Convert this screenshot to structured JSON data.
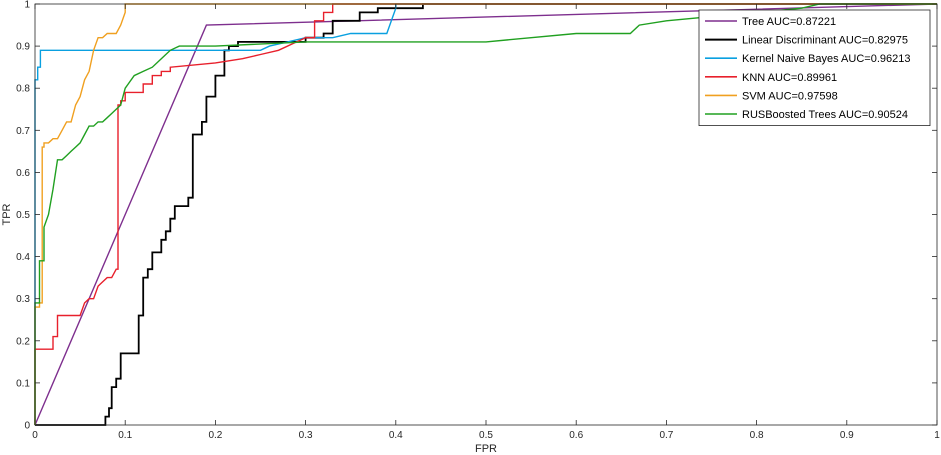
{
  "chart_data": {
    "type": "line",
    "title": "",
    "xlabel": "FPR",
    "ylabel": "TPR",
    "xlim": [
      0,
      1
    ],
    "ylim": [
      0,
      1
    ],
    "xticks": [
      "0",
      "0.1",
      "0.2",
      "0.3",
      "0.4",
      "0.5",
      "0.6",
      "0.7",
      "0.8",
      "0.9",
      "1"
    ],
    "yticks": [
      "0",
      "0.1",
      "0.2",
      "0.3",
      "0.4",
      "0.5",
      "0.6",
      "0.7",
      "0.8",
      "0.9",
      "1"
    ],
    "grid": false,
    "legend_position": "top-right",
    "series": [
      {
        "name": "Tree AUC=0.87221",
        "color": "#7e2f8e",
        "x": [
          0,
          0.19,
          1
        ],
        "y": [
          0,
          0.95,
          1
        ]
      },
      {
        "name": "Linear Discriminant AUC=0.82975",
        "color": "#000000",
        "x": [
          0,
          0.078,
          0.078,
          0.082,
          0.082,
          0.085,
          0.085,
          0.09,
          0.09,
          0.095,
          0.095,
          0.1,
          0.1,
          0.115,
          0.115,
          0.12,
          0.12,
          0.125,
          0.125,
          0.13,
          0.13,
          0.14,
          0.14,
          0.145,
          0.145,
          0.15,
          0.15,
          0.155,
          0.155,
          0.16,
          0.16,
          0.17,
          0.17,
          0.175,
          0.175,
          0.185,
          0.185,
          0.19,
          0.19,
          0.2,
          0.2,
          0.21,
          0.21,
          0.215,
          0.215,
          0.225,
          0.225,
          0.25,
          0.25,
          0.3,
          0.3,
          0.32,
          0.32,
          0.33,
          0.33,
          0.36,
          0.36,
          0.38,
          0.38,
          0.43,
          0.43,
          1
        ],
        "y": [
          0,
          0,
          0.02,
          0.02,
          0.04,
          0.04,
          0.09,
          0.09,
          0.11,
          0.11,
          0.17,
          0.17,
          0.17,
          0.17,
          0.26,
          0.26,
          0.35,
          0.35,
          0.37,
          0.37,
          0.41,
          0.41,
          0.44,
          0.44,
          0.46,
          0.46,
          0.49,
          0.49,
          0.52,
          0.52,
          0.52,
          0.52,
          0.54,
          0.54,
          0.69,
          0.69,
          0.72,
          0.72,
          0.78,
          0.78,
          0.83,
          0.83,
          0.89,
          0.89,
          0.9,
          0.9,
          0.91,
          0.91,
          0.91,
          0.91,
          0.92,
          0.92,
          0.93,
          0.93,
          0.96,
          0.96,
          0.98,
          0.98,
          0.99,
          0.99,
          1.0,
          1.0
        ]
      },
      {
        "name": "Kernel Naive Bayes AUC=0.96213",
        "color": "#0aa0e0",
        "x": [
          0,
          0,
          0.003,
          0.003,
          0.006,
          0.006,
          0.25,
          0.26,
          0.28,
          0.3,
          0.33,
          0.35,
          0.39,
          0.4,
          0.4,
          1
        ],
        "y": [
          0,
          0.82,
          0.82,
          0.85,
          0.85,
          0.89,
          0.89,
          0.9,
          0.91,
          0.92,
          0.92,
          0.93,
          0.93,
          0.99,
          1.0,
          1.0
        ]
      },
      {
        "name": "KNN AUC=0.89961",
        "color": "#e8202c",
        "x": [
          0,
          0,
          0.02,
          0.02,
          0.025,
          0.025,
          0.05,
          0.055,
          0.06,
          0.065,
          0.07,
          0.075,
          0.08,
          0.085,
          0.09,
          0.092,
          0.092,
          0.095,
          0.095,
          0.1,
          0.1,
          0.11,
          0.11,
          0.12,
          0.12,
          0.13,
          0.13,
          0.14,
          0.14,
          0.15,
          0.15,
          0.2,
          0.23,
          0.25,
          0.27,
          0.29,
          0.3,
          0.31,
          0.31,
          0.32,
          0.32,
          0.33,
          0.33,
          1
        ],
        "y": [
          0,
          0.18,
          0.18,
          0.21,
          0.21,
          0.26,
          0.26,
          0.29,
          0.3,
          0.3,
          0.33,
          0.34,
          0.35,
          0.35,
          0.37,
          0.37,
          0.76,
          0.76,
          0.77,
          0.77,
          0.79,
          0.79,
          0.79,
          0.79,
          0.81,
          0.81,
          0.83,
          0.83,
          0.84,
          0.84,
          0.85,
          0.86,
          0.87,
          0.88,
          0.89,
          0.91,
          0.92,
          0.92,
          0.96,
          0.96,
          0.98,
          0.98,
          1.0,
          1.0
        ]
      },
      {
        "name": "SVM AUC=0.97598",
        "color": "#f0a020",
        "x": [
          0,
          0,
          0.005,
          0.005,
          0.008,
          0.008,
          0.01,
          0.01,
          0.015,
          0.02,
          0.025,
          0.03,
          0.035,
          0.04,
          0.045,
          0.05,
          0.055,
          0.06,
          0.065,
          0.07,
          0.075,
          0.08,
          0.085,
          0.09,
          0.095,
          0.1,
          0.1,
          1
        ],
        "y": [
          0,
          0.28,
          0.28,
          0.29,
          0.29,
          0.66,
          0.66,
          0.67,
          0.67,
          0.68,
          0.68,
          0.7,
          0.72,
          0.72,
          0.76,
          0.78,
          0.82,
          0.84,
          0.89,
          0.92,
          0.92,
          0.93,
          0.93,
          0.93,
          0.95,
          0.98,
          1.0,
          1.0
        ]
      },
      {
        "name": "RUSBoosted Trees AUC=0.90524",
        "color": "#20a020",
        "x": [
          0,
          0,
          0.005,
          0.005,
          0.01,
          0.01,
          0.015,
          0.02,
          0.025,
          0.03,
          0.035,
          0.04,
          0.045,
          0.05,
          0.055,
          0.06,
          0.065,
          0.07,
          0.075,
          0.08,
          0.085,
          0.09,
          0.095,
          0.1,
          0.11,
          0.12,
          0.13,
          0.14,
          0.15,
          0.16,
          0.17,
          0.2,
          0.3,
          0.4,
          0.5,
          0.55,
          0.6,
          0.66,
          0.67,
          0.7,
          0.75,
          0.8,
          0.85,
          0.87,
          1
        ],
        "y": [
          0,
          0.29,
          0.29,
          0.39,
          0.39,
          0.47,
          0.5,
          0.56,
          0.63,
          0.63,
          0.64,
          0.65,
          0.66,
          0.67,
          0.69,
          0.71,
          0.71,
          0.72,
          0.72,
          0.73,
          0.74,
          0.75,
          0.76,
          0.8,
          0.83,
          0.84,
          0.85,
          0.87,
          0.89,
          0.9,
          0.9,
          0.9,
          0.91,
          0.91,
          0.91,
          0.92,
          0.93,
          0.93,
          0.95,
          0.96,
          0.97,
          0.98,
          0.99,
          1.0,
          1.0
        ]
      }
    ]
  }
}
